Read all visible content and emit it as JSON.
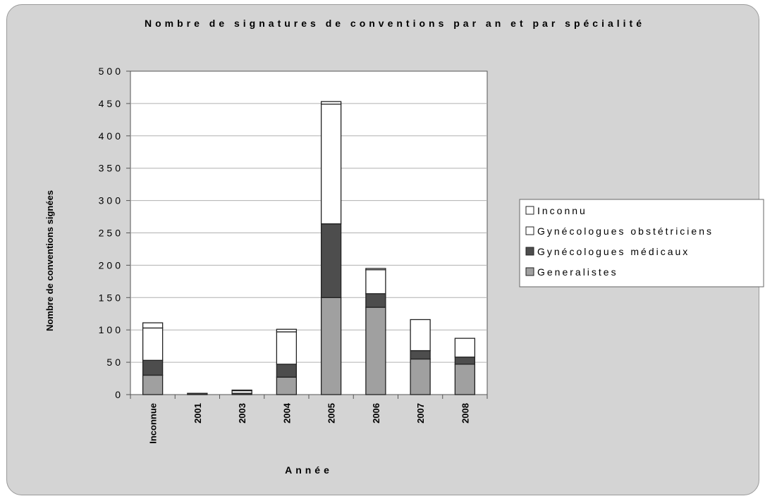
{
  "chart_data": {
    "type": "bar",
    "stacked": true,
    "title": "Nombre de signatures de conventions par an et par spécialité",
    "xlabel": "Année",
    "ylabel": "Nombre de conventions signées",
    "ylim": [
      0,
      500
    ],
    "yticks": [
      0,
      50,
      100,
      150,
      200,
      250,
      300,
      350,
      400,
      450,
      500
    ],
    "ytick_labels": [
      "0",
      "50",
      "100",
      "150",
      "200",
      "250",
      "300",
      "350",
      "400",
      "450",
      "500"
    ],
    "grid": true,
    "legend_position": "right",
    "categories": [
      "Inconnue",
      "2001",
      "2003",
      "2004",
      "2005",
      "2006",
      "2007",
      "2008"
    ],
    "series": [
      {
        "name": "Generalistes",
        "color": "#a0a0a0",
        "values": [
          30,
          0,
          0,
          27,
          150,
          135,
          55,
          47
        ]
      },
      {
        "name": "Gynécologues médicaux",
        "color": "#4d4d4d",
        "values": [
          23,
          2,
          2,
          20,
          114,
          21,
          13,
          11
        ]
      },
      {
        "name": "Gynécologues obstétriciens",
        "color": "#ffffff",
        "values": [
          50,
          0,
          4,
          50,
          185,
          37,
          48,
          29
        ]
      },
      {
        "name": "Inconnu",
        "color": "#ffffff",
        "values": [
          8,
          0,
          1,
          4,
          4,
          2,
          0,
          0
        ]
      }
    ]
  }
}
